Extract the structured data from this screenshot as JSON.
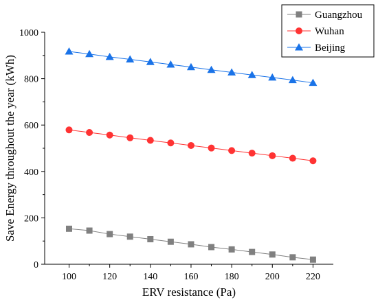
{
  "chart_data": {
    "type": "line",
    "title": "",
    "xlabel": "ERV resistance (Pa)",
    "ylabel": "Save Energy throughout the year (kWh)",
    "xlim": [
      88,
      230
    ],
    "ylim": [
      0,
      1000
    ],
    "xticks": [
      100,
      120,
      140,
      160,
      180,
      200,
      220
    ],
    "yticks": [
      0,
      200,
      400,
      600,
      800,
      1000
    ],
    "grid": false,
    "legend_position": "top-right",
    "x": [
      100,
      110,
      120,
      130,
      140,
      150,
      160,
      170,
      180,
      190,
      200,
      210,
      220
    ],
    "series": [
      {
        "name": "Guangzhou",
        "marker": "square",
        "color": "#808080",
        "values": [
          153,
          145,
          130,
          119,
          108,
          97,
          86,
          74,
          64,
          53,
          42,
          30,
          20
        ]
      },
      {
        "name": "Wuhan",
        "marker": "circle",
        "color": "#ff3333",
        "values": [
          579,
          568,
          557,
          545,
          534,
          523,
          512,
          501,
          490,
          479,
          468,
          457,
          446
        ]
      },
      {
        "name": "Beijing",
        "marker": "triangle",
        "color": "#1a73e8",
        "values": [
          917,
          906,
          894,
          883,
          872,
          861,
          850,
          838,
          827,
          816,
          805,
          794,
          782
        ]
      }
    ]
  }
}
